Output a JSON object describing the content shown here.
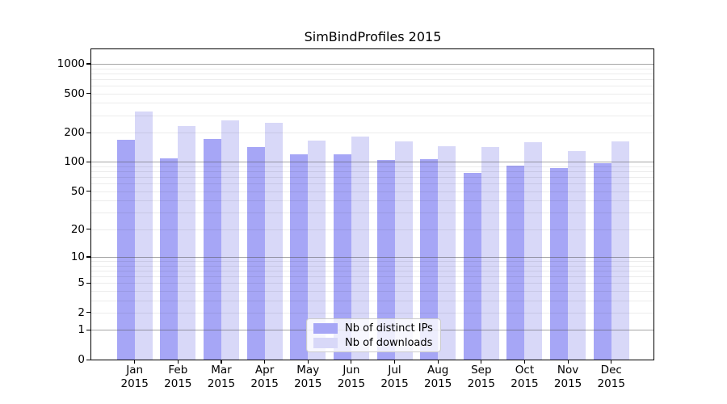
{
  "title": "SimBindProfiles 2015",
  "chart_data": {
    "type": "bar",
    "title": "SimBindProfiles 2015",
    "months": [
      "Jan",
      "Feb",
      "Mar",
      "Apr",
      "May",
      "Jun",
      "Jul",
      "Aug",
      "Sep",
      "Oct",
      "Nov",
      "Dec"
    ],
    "year_label": "2015",
    "series": [
      {
        "name": "Nb of distinct IPs",
        "color": "#a6a6f6",
        "values": [
          168,
          108,
          172,
          143,
          120,
          120,
          104,
          106,
          77,
          91,
          86,
          98
        ]
      },
      {
        "name": "Nb of downloads",
        "color": "#d8d8f8",
        "values": [
          326,
          234,
          267,
          251,
          166,
          182,
          161,
          146,
          143,
          160,
          130,
          163
        ]
      }
    ],
    "y_ticks": [
      0,
      1,
      2,
      5,
      10,
      20,
      50,
      100,
      200,
      500,
      1000
    ],
    "y_scale": "log10(1+value)",
    "ylim": [
      0,
      1400
    ],
    "xlabel": "",
    "ylabel": "",
    "grid": "major gray lines at 1/10/100/1000, faint minor lines at 2-9,20-90,200-900, drawn over bars",
    "legend_position": "lower center inside plot"
  }
}
